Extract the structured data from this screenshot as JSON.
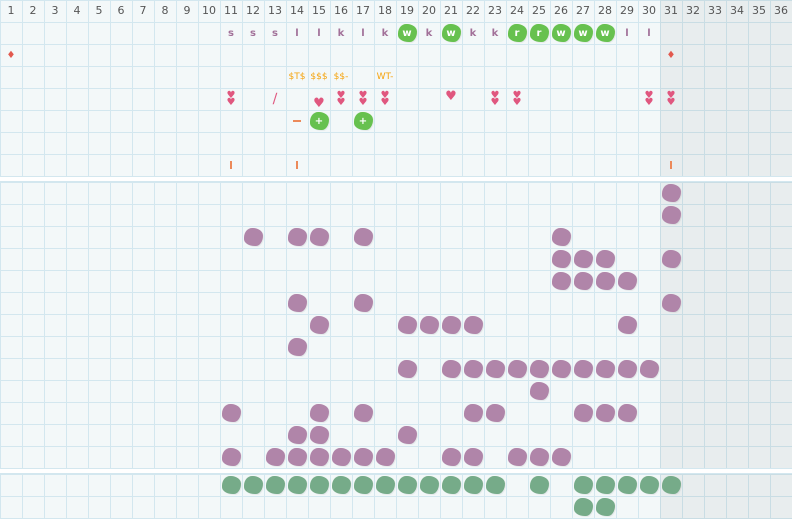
{
  "columns": [
    "1",
    "2",
    "3",
    "4",
    "5",
    "6",
    "7",
    "8",
    "9",
    "10",
    "11",
    "12",
    "13",
    "14",
    "15",
    "16",
    "17",
    "18",
    "19",
    "20",
    "21",
    "22",
    "23",
    "24",
    "25",
    "26",
    "27",
    "28",
    "29",
    "30",
    "31",
    "32",
    "33",
    "34",
    "35",
    "36"
  ],
  "colors": {
    "purple": "#b085a9",
    "green": "#67c14f",
    "gray_green": "#76ab89",
    "money": "#f5a40f",
    "heart": "#e0577f"
  },
  "top": {
    "letters": [
      {
        "col": 11,
        "t": "s"
      },
      {
        "col": 12,
        "t": "s"
      },
      {
        "col": 13,
        "t": "s"
      },
      {
        "col": 14,
        "t": "l"
      },
      {
        "col": 15,
        "t": "l"
      },
      {
        "col": 16,
        "t": "k"
      },
      {
        "col": 17,
        "t": "l"
      },
      {
        "col": 18,
        "t": "k"
      },
      {
        "col": 19,
        "t": "w",
        "badge": true
      },
      {
        "col": 20,
        "t": "k"
      },
      {
        "col": 21,
        "t": "w",
        "badge": true
      },
      {
        "col": 22,
        "t": "k"
      },
      {
        "col": 23,
        "t": "k"
      },
      {
        "col": 24,
        "t": "r",
        "badge": true
      },
      {
        "col": 25,
        "t": "r",
        "badge": true
      },
      {
        "col": 26,
        "t": "w",
        "badge": true
      },
      {
        "col": 27,
        "t": "w",
        "badge": true
      },
      {
        "col": 28,
        "t": "w",
        "badge": true
      },
      {
        "col": 29,
        "t": "l"
      },
      {
        "col": 30,
        "t": "l"
      }
    ],
    "drops": [
      1,
      31
    ],
    "money": [
      {
        "col": 14,
        "t": "$T$"
      },
      {
        "col": 15,
        "t": "$$$"
      },
      {
        "col": 16,
        "t": "$$-"
      },
      {
        "col": 18,
        "t": "WT-"
      }
    ],
    "double_hearts": [
      11,
      16,
      17,
      18,
      23,
      24,
      30,
      31
    ],
    "single_hearts": [
      15,
      21
    ],
    "pencil": [
      13
    ],
    "dash": [
      14
    ],
    "plus_badges": [
      15,
      17
    ],
    "ticks": [
      11,
      14,
      31
    ]
  },
  "middle_rows": [
    [
      31
    ],
    [
      31
    ],
    [
      12,
      14,
      15,
      17,
      26
    ],
    [
      26,
      27,
      28,
      31
    ],
    [
      26,
      27,
      28,
      29
    ],
    [
      14,
      17,
      31
    ],
    [
      15,
      19,
      20,
      21,
      22,
      29
    ],
    [
      14
    ],
    [
      19,
      21,
      22,
      23,
      24,
      25,
      26,
      27,
      28,
      29,
      30
    ],
    [
      25
    ],
    [
      11,
      15,
      17,
      22,
      23,
      27,
      28,
      29
    ],
    [
      14,
      15,
      19
    ],
    [
      11,
      13,
      14,
      15,
      16,
      17,
      18,
      21,
      22,
      24,
      25,
      26
    ]
  ],
  "bottom_rows": [
    [
      11,
      12,
      13,
      14,
      15,
      16,
      17,
      18,
      19,
      20,
      21,
      22,
      23,
      25,
      27,
      28,
      29,
      30,
      31
    ],
    [
      27,
      28
    ]
  ]
}
